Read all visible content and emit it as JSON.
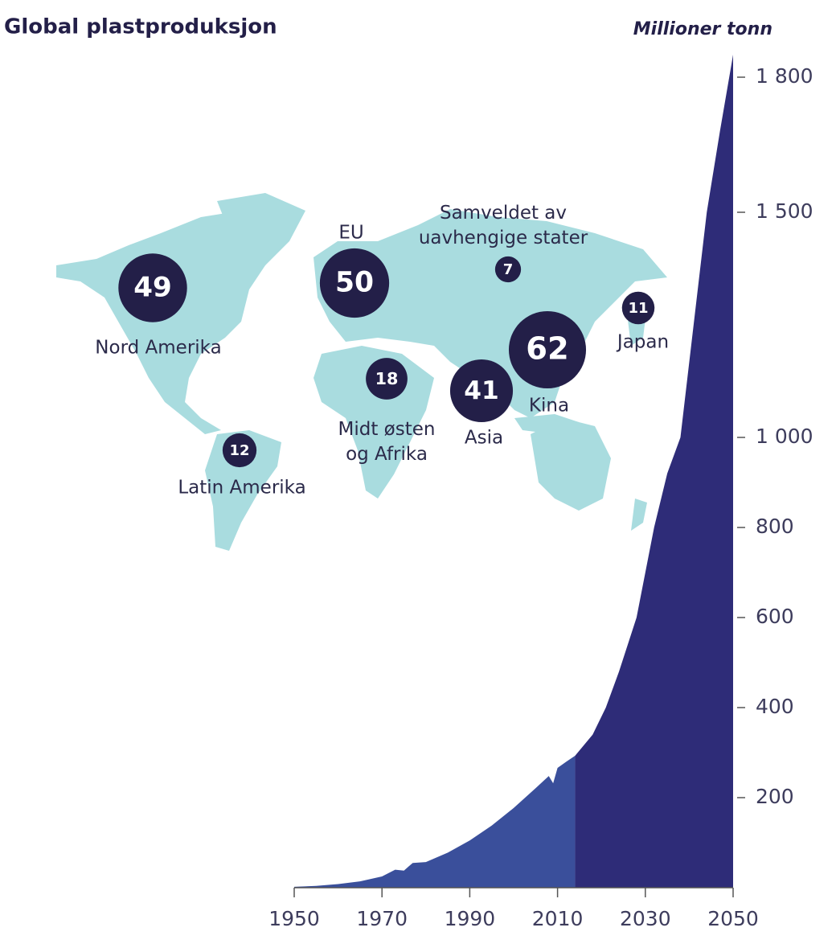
{
  "chart_data": [
    {
      "type": "area",
      "title": "Global plastproduksjon",
      "y_label": "Millioner tonn",
      "x": [
        1950,
        1955,
        1960,
        1965,
        1970,
        1973,
        1975,
        1977,
        1980,
        1985,
        1990,
        1995,
        2000,
        2005,
        2008,
        2009,
        2010,
        2012,
        2014,
        2018,
        2021,
        2024,
        2028,
        2032,
        2035,
        2038,
        2041,
        2044,
        2047,
        2050
      ],
      "series": [
        {
          "color": "#3a4f9b",
          "values": [
            2,
            4,
            8,
            14,
            25,
            40,
            38,
            55,
            57,
            78,
            105,
            138,
            177,
            221,
            248,
            232,
            266,
            280,
            293,
            null,
            null,
            null,
            null,
            null,
            null,
            null,
            null,
            null,
            null,
            null
          ]
        },
        {
          "color": "#2e2c78",
          "values": [
            null,
            null,
            null,
            null,
            null,
            null,
            null,
            null,
            null,
            null,
            null,
            null,
            null,
            null,
            null,
            null,
            null,
            null,
            293,
            340,
            400,
            480,
            600,
            800,
            920,
            1000,
            1250,
            1500,
            1680,
            1850
          ]
        }
      ],
      "xlim": [
        1950,
        2050
      ],
      "xticks": [
        1950,
        1970,
        1990,
        2010,
        2030,
        2050
      ],
      "ylim": [
        0,
        1850
      ],
      "yticks": [
        200,
        400,
        600,
        800,
        {
          "value": 1000,
          "label": "1 000"
        },
        {
          "value": 1500,
          "label": "1 500"
        },
        {
          "value": 1800,
          "label": "1 800"
        }
      ]
    },
    {
      "type": "bubble-map",
      "color": "#231f48",
      "categories": [
        "Nord Amerika",
        "EU",
        "Samveldet av uavhengige stater",
        "Japan",
        "Kina",
        "Asia",
        "Midt østen og Afrika",
        "Latin Amerika"
      ],
      "values": [
        49,
        50,
        7,
        11,
        62,
        41,
        18,
        12
      ]
    }
  ]
}
